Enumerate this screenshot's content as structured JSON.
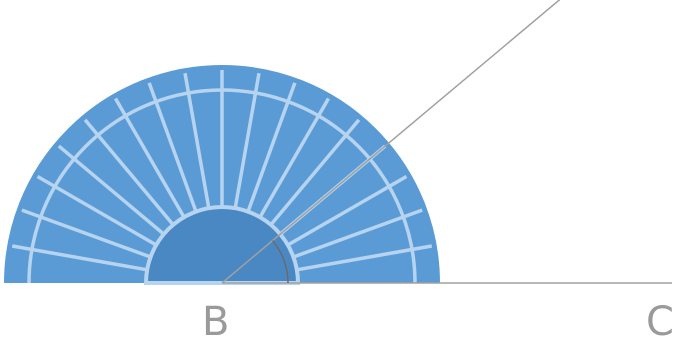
{
  "points": {
    "vertex": "B",
    "end": "C"
  },
  "angle": {
    "degrees": 40
  },
  "colors": {
    "protractor_fill": "#5b9bd5",
    "protractor_dark": "#4a88c4",
    "tick_lines": "#b6d4f0",
    "ray": "#a0a0a0",
    "label": "#9a9a9a",
    "angle_arc": "#6a6a6a"
  },
  "protractor": {
    "shape": "semicircle",
    "major_divisions": 18
  }
}
